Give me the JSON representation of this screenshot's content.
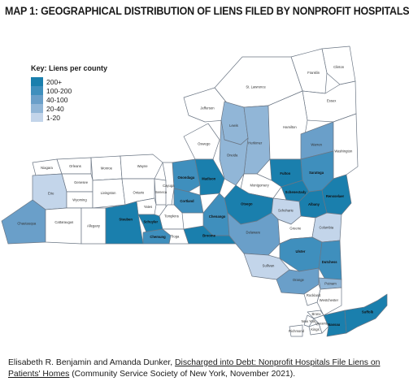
{
  "title": "MAP 1: GEOGRAPHICAL DISTRIBUTION OF LIENS FILED BY NONPROFIT HOSPITALS",
  "legend": {
    "title": "Key: Liens per county",
    "items": [
      {
        "label": "200+",
        "color": "#1a7fad"
      },
      {
        "label": "100-200",
        "color": "#3f8fbd"
      },
      {
        "label": "40-100",
        "color": "#6a9fc9"
      },
      {
        "label": "20-40",
        "color": "#91b6d7"
      },
      {
        "label": "1-20",
        "color": "#c3d5ea"
      }
    ]
  },
  "counties": {
    "Clinton": {
      "label": "Clinton",
      "tier": 0
    },
    "Franklin": {
      "label": "Franklin",
      "tier": 0
    },
    "StLawrence": {
      "label": "St. Lawrence",
      "tier": 0
    },
    "Essex": {
      "label": "Essex",
      "tier": 0
    },
    "Jefferson": {
      "label": "Jefferson",
      "tier": 0
    },
    "Lewis": {
      "label": "Lewis",
      "tier": 4
    },
    "Herkimer": {
      "label": "Herkimer",
      "tier": 4
    },
    "Hamilton": {
      "label": "Hamilton",
      "tier": 0
    },
    "Warren": {
      "label": "Warren",
      "tier": 3
    },
    "Washington": {
      "label": "Washington",
      "tier": 0
    },
    "Oswego": {
      "label": "Oswego",
      "tier": 0
    },
    "Oneida": {
      "label": "Oneida",
      "tier": 4
    },
    "Fulton": {
      "label": "Fulton",
      "tier": 1
    },
    "Saratoga": {
      "label": "Saratoga",
      "tier": 2
    },
    "Niagara": {
      "label": "Niagara",
      "tier": 0
    },
    "Orleans": {
      "label": "Orleans",
      "tier": 0
    },
    "Monroe": {
      "label": "Monroe",
      "tier": 0
    },
    "Wayne": {
      "label": "Wayne",
      "tier": 0
    },
    "Genesee": {
      "label": "Genesee",
      "tier": 0
    },
    "Onondaga": {
      "label": "Onondaga",
      "tier": 2
    },
    "Madison": {
      "label": "Madison",
      "tier": 1
    },
    "Montgomery": {
      "label": "Montgomery",
      "tier": 0
    },
    "Schenectady": {
      "label": "Schenectady",
      "tier": 1
    },
    "Rensselaer": {
      "label": "Rensselaer",
      "tier": 1
    },
    "Erie": {
      "label": "Erie",
      "tier": 5
    },
    "Wyoming": {
      "label": "Wyoming",
      "tier": 0
    },
    "Livingston": {
      "label": "Livingston",
      "tier": 0
    },
    "Ontario": {
      "label": "Ontario",
      "tier": 0
    },
    "Seneca": {
      "label": "Seneca",
      "tier": 0
    },
    "Cayuga": {
      "label": "Cayuga",
      "tier": 0
    },
    "Cortland": {
      "label": "Cortland",
      "tier": 2
    },
    "Otsego": {
      "label": "Otsego",
      "tier": 1
    },
    "Albany": {
      "label": "Albany",
      "tier": 1
    },
    "Yates": {
      "label": "Yates",
      "tier": 0
    },
    "Tompkins": {
      "label": "Tompkins",
      "tier": 0
    },
    "Chenango": {
      "label": "Chenango",
      "tier": 2
    },
    "Schoharie": {
      "label": "Schoharie",
      "tier": 5
    },
    "Chautauqua": {
      "label": "Chautauqua",
      "tier": 3
    },
    "Cattaraugus": {
      "label": "Cattaraugus",
      "tier": 0
    },
    "Allegany": {
      "label": "Allegany",
      "tier": 0
    },
    "Steuben": {
      "label": "Steuben",
      "tier": 1
    },
    "Schuyler": {
      "label": "Schuyler",
      "tier": 1
    },
    "Chemung": {
      "label": "Chemung",
      "tier": 2
    },
    "Tioga": {
      "label": "Tioga",
      "tier": 0
    },
    "Broome": {
      "label": "Broome",
      "tier": 1
    },
    "Delaware": {
      "label": "Delaware",
      "tier": 3
    },
    "Greene": {
      "label": "Greene",
      "tier": 0
    },
    "Columbia": {
      "label": "Columbia",
      "tier": 5
    },
    "Ulster": {
      "label": "Ulster",
      "tier": 2
    },
    "Sullivan": {
      "label": "Sullivan",
      "tier": 5
    },
    "Dutchess": {
      "label": "Dutchess",
      "tier": 2
    },
    "Orange": {
      "label": "Orange",
      "tier": 3
    },
    "Putnam": {
      "label": "Putnam",
      "tier": 4
    },
    "Westchester": {
      "label": "Westchester",
      "tier": 0
    },
    "Rockland": {
      "label": "Rockland",
      "tier": 0
    },
    "Bronx": {
      "label": "Bronx",
      "tier": 0
    },
    "NewYork": {
      "label": "New York",
      "tier": 0
    },
    "Kings": {
      "label": "Kings",
      "tier": 0
    },
    "Queens": {
      "label": "Queens",
      "tier": 0
    },
    "Richmond": {
      "label": "Richmond",
      "tier": 0
    },
    "Nassau": {
      "label": "Nassau",
      "tier": 1
    },
    "Suffolk": {
      "label": "Suffolk",
      "tier": 1
    }
  },
  "colors": {
    "none": "#ffffff",
    "border": "#6b7684"
  },
  "footer": {
    "authors": "Elisabeth R. Benjamin and Amanda Dunker, ",
    "report_title": "Discharged into Debt: Nonprofit Hospitals File Liens on Patients' Homes",
    "source": " (Community Service Society of New York, November 2021)."
  }
}
